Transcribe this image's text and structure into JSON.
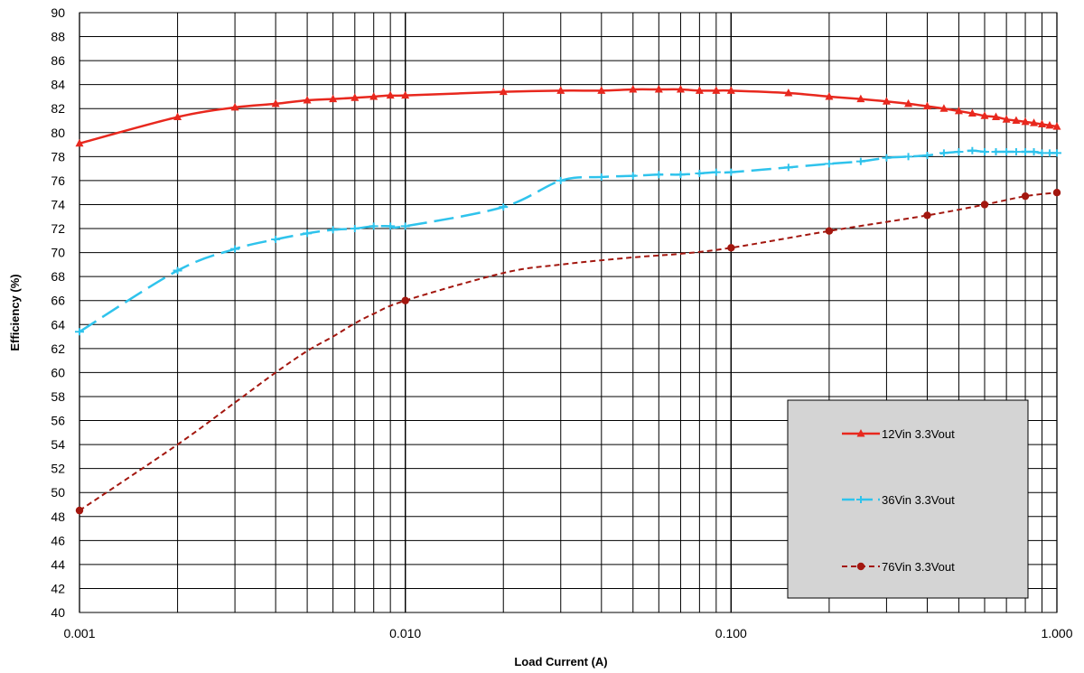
{
  "chart_data": {
    "type": "line",
    "title": "",
    "xlabel": "Load Current (A)",
    "ylabel": "Efficiency (%)",
    "x_scale": "log",
    "xlim": [
      0.001,
      1.0
    ],
    "ylim": [
      40,
      90
    ],
    "x_ticks": [
      0.001,
      0.01,
      0.1,
      1.0
    ],
    "x_tick_labels": [
      "0.001",
      "0.010",
      "0.100",
      "1.000"
    ],
    "y_ticks": [
      40,
      42,
      44,
      46,
      48,
      50,
      52,
      54,
      56,
      58,
      60,
      62,
      64,
      66,
      68,
      70,
      72,
      74,
      76,
      78,
      80,
      82,
      84,
      86,
      88,
      90
    ],
    "y_tick_labels": [
      "40",
      "42",
      "44",
      "46",
      "48",
      "50",
      "52",
      "54",
      "56",
      "58",
      "60",
      "62",
      "64",
      "66",
      "68",
      "70",
      "72",
      "74",
      "76",
      "78",
      "80",
      "82",
      "84",
      "86",
      "88",
      "90"
    ],
    "grid": true,
    "legend_position": "bottom-right",
    "legend_background": "#d4d4d4",
    "series": [
      {
        "name": "12Vin 3.3Vout",
        "color": "#e8281e",
        "line_style": "solid",
        "marker": "triangle",
        "x": [
          0.001,
          0.002,
          0.003,
          0.004,
          0.005,
          0.006,
          0.007,
          0.008,
          0.009,
          0.01,
          0.02,
          0.03,
          0.04,
          0.05,
          0.06,
          0.07,
          0.08,
          0.09,
          0.1,
          0.15,
          0.2,
          0.25,
          0.3,
          0.35,
          0.4,
          0.45,
          0.5,
          0.55,
          0.6,
          0.65,
          0.7,
          0.75,
          0.8,
          0.85,
          0.9,
          0.95,
          1.0
        ],
        "values": [
          79.1,
          81.3,
          82.1,
          82.4,
          82.7,
          82.8,
          82.9,
          83.0,
          83.1,
          83.1,
          83.4,
          83.5,
          83.5,
          83.6,
          83.6,
          83.6,
          83.5,
          83.5,
          83.5,
          83.3,
          83.0,
          82.8,
          82.6,
          82.4,
          82.2,
          82.0,
          81.8,
          81.6,
          81.4,
          81.3,
          81.1,
          81.0,
          80.9,
          80.8,
          80.7,
          80.6,
          80.5
        ]
      },
      {
        "name": "36Vin 3.3Vout",
        "color": "#2fc3ec",
        "line_style": "long-dash",
        "marker": "cross",
        "x": [
          0.001,
          0.002,
          0.003,
          0.004,
          0.005,
          0.006,
          0.007,
          0.008,
          0.009,
          0.01,
          0.02,
          0.03,
          0.04,
          0.05,
          0.06,
          0.07,
          0.08,
          0.09,
          0.1,
          0.15,
          0.2,
          0.25,
          0.3,
          0.35,
          0.4,
          0.45,
          0.5,
          0.55,
          0.6,
          0.65,
          0.7,
          0.75,
          0.8,
          0.85,
          0.9,
          0.95,
          1.0
        ],
        "values": [
          63.4,
          68.5,
          70.3,
          71.1,
          71.6,
          71.9,
          72.0,
          72.2,
          72.2,
          72.2,
          73.8,
          76.0,
          76.3,
          76.4,
          76.5,
          76.5,
          76.6,
          76.7,
          76.7,
          77.1,
          77.4,
          77.6,
          77.9,
          78.0,
          78.1,
          78.3,
          78.4,
          78.5,
          78.4,
          78.4,
          78.4,
          78.4,
          78.4,
          78.4,
          78.3,
          78.3,
          78.3
        ]
      },
      {
        "name": "76Vin 3.3Vout",
        "color": "#a3170f",
        "line_style": "short-dash",
        "marker": "circle",
        "x": [
          0.001,
          0.002,
          0.003,
          0.004,
          0.005,
          0.006,
          0.007,
          0.008,
          0.01,
          0.02,
          0.03,
          0.05,
          0.07,
          0.1,
          0.2,
          0.4,
          0.6,
          0.8,
          1.0
        ],
        "values": [
          48.5,
          54.0,
          57.5,
          60.0,
          61.8,
          63.0,
          64.1,
          64.9,
          66.0,
          68.3,
          69.0,
          69.6,
          69.9,
          70.4,
          71.8,
          73.1,
          74.0,
          74.7,
          75.0
        ],
        "marker_x": [
          0.001,
          0.01,
          0.1,
          0.2,
          0.4,
          0.6,
          0.8,
          1.0
        ]
      }
    ]
  }
}
